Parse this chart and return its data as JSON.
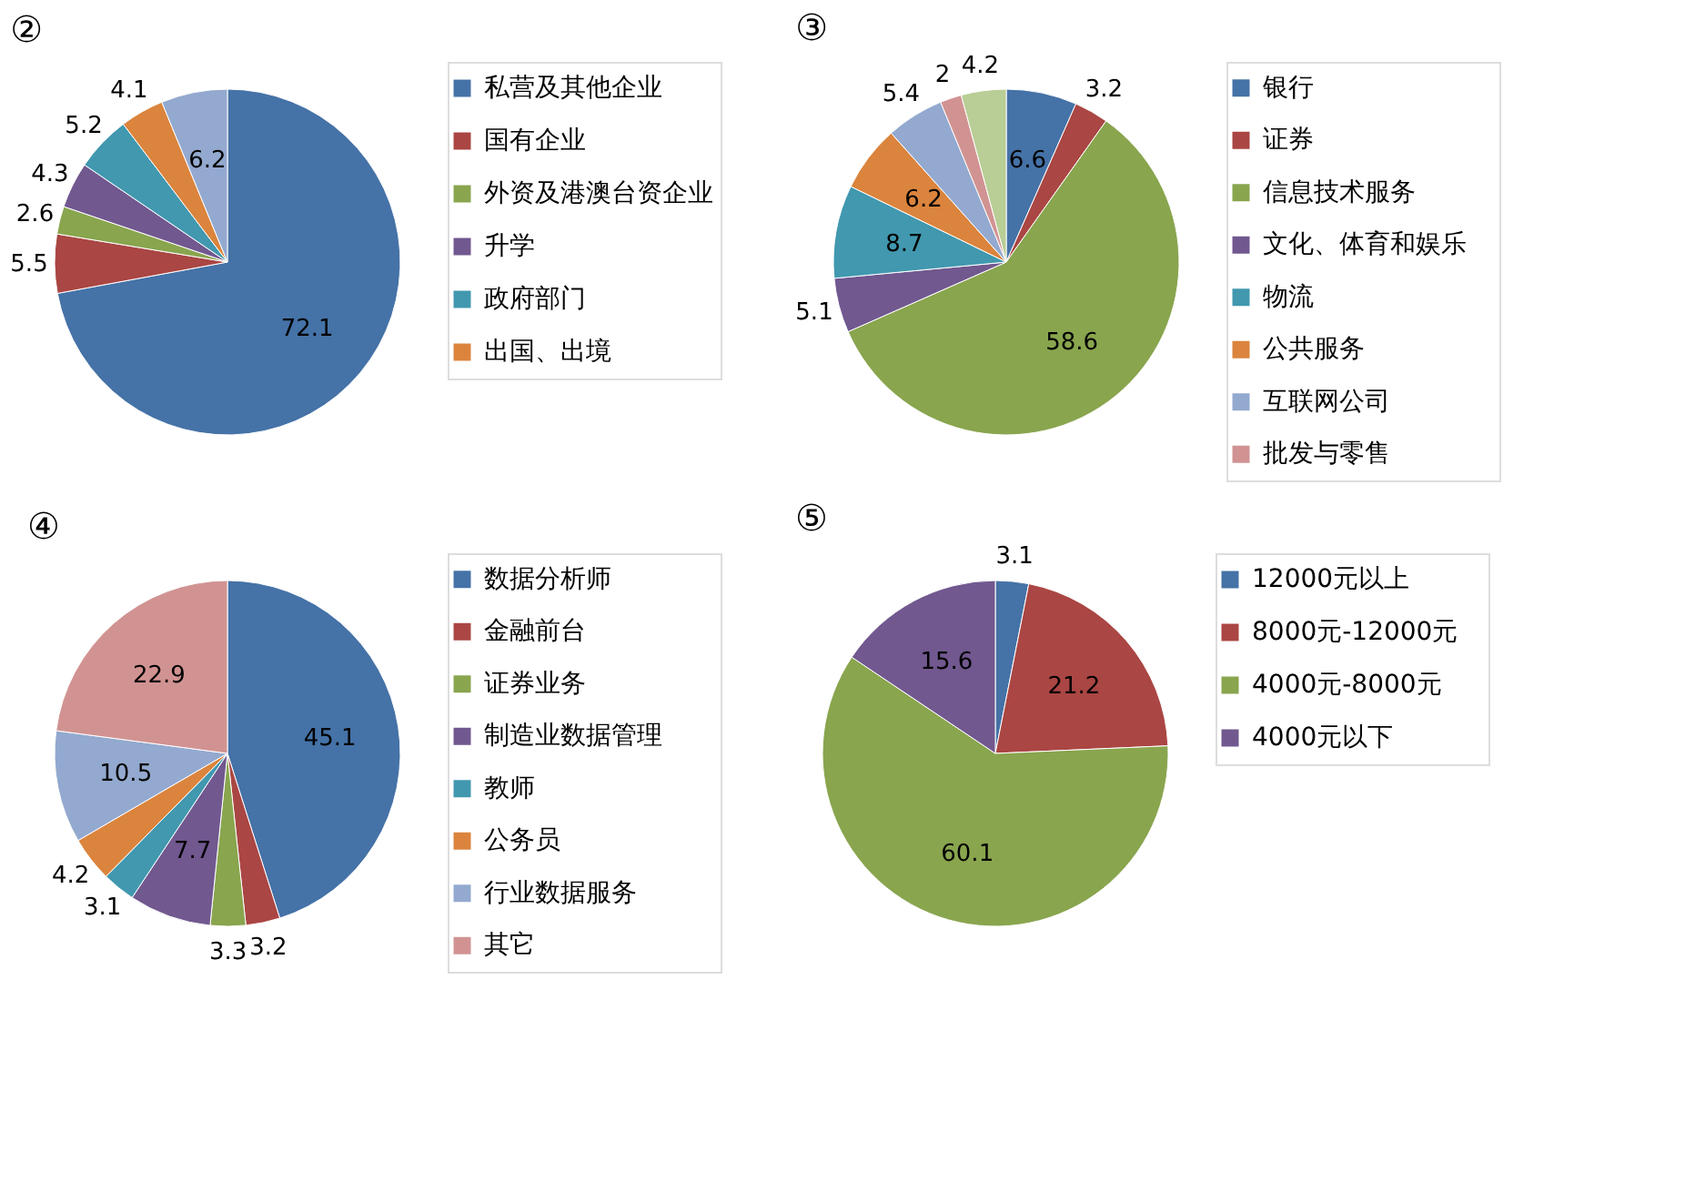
{
  "chart_data": [
    {
      "type": "pie",
      "title": "②",
      "legend": "right",
      "data_labels": true,
      "categories": [
        "私营及其他企业",
        "国有企业",
        "外资及港澳台资企业",
        "升学",
        "政府部门",
        "出国、出境",
        null
      ],
      "values": [
        72.1,
        5.5,
        2.6,
        4.3,
        5.2,
        4.1,
        6.2
      ],
      "colors": [
        "#4572a7",
        "#aa4643",
        "#89a54e",
        "#71588f",
        "#4198af",
        "#db843d",
        "#93a9cf"
      ]
    },
    {
      "type": "pie",
      "title": "③",
      "legend": "right",
      "data_labels": true,
      "categories": [
        "银行",
        "证券",
        "信息技术服务",
        "文化、体育和娱乐",
        "物流",
        "公共服务",
        "互联网公司",
        "批发与零售",
        null
      ],
      "values": [
        6.6,
        3.2,
        58.6,
        5.1,
        8.7,
        6.2,
        5.4,
        2,
        4.2
      ],
      "colors": [
        "#4572a7",
        "#aa4643",
        "#89a54e",
        "#71588f",
        "#4198af",
        "#db843d",
        "#93a9cf",
        "#d19392",
        "#b9cd96"
      ]
    },
    {
      "type": "pie",
      "title": "④",
      "legend": "right",
      "data_labels": true,
      "categories": [
        "数据分析师",
        "金融前台",
        "证券业务",
        "制造业数据管理",
        "教师",
        "公务员",
        "行业数据服务",
        "其它"
      ],
      "values": [
        45.1,
        3.2,
        3.3,
        7.7,
        3.1,
        4.2,
        10.5,
        22.9
      ],
      "colors": [
        "#4572a7",
        "#aa4643",
        "#89a54e",
        "#71588f",
        "#4198af",
        "#db843d",
        "#93a9cf",
        "#d19392"
      ]
    },
    {
      "type": "pie",
      "title": "⑤",
      "legend": "right",
      "data_labels": true,
      "categories": [
        "12000元以上",
        "8000元-12000元",
        "4000元-8000元",
        "4000元以下"
      ],
      "values": [
        3.1,
        21.2,
        60.1,
        15.6
      ],
      "colors": [
        "#4572a7",
        "#aa4643",
        "#89a54e",
        "#71588f"
      ]
    }
  ]
}
